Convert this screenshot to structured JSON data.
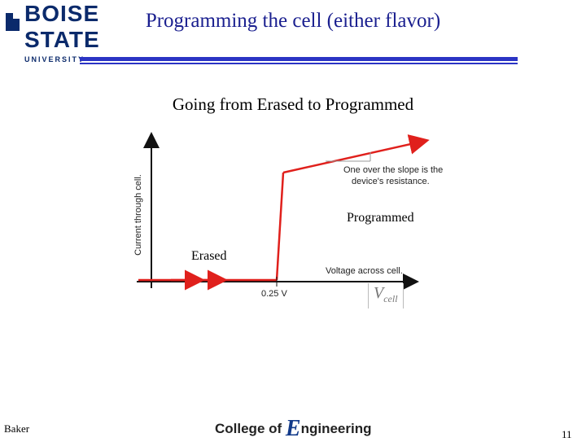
{
  "header": {
    "logo_line1": "BOISE",
    "logo_line2": "STATE",
    "logo_line3": "UNIVERSITY",
    "title": "Programming the cell (either flavor)",
    "bar_color": "#2b34c4"
  },
  "subtitle": "Going from Erased to Programmed",
  "diagram": {
    "y_axis_label": "Current through cell.",
    "x_axis_label": "Voltage across cell.",
    "threshold_label": "0.25 V",
    "annotation_line1": "One over the slope is the",
    "annotation_line2": "device's resistance.",
    "state_programmed": "Programmed",
    "state_erased": "Erased",
    "vcell_main": "V",
    "vcell_sub": "cell",
    "curve_color": "#e0201c"
  },
  "footer": {
    "author": "Baker",
    "college_prefix": "College of ",
    "college_e": "E",
    "college_suffix": "ngineering",
    "page_number": "11"
  }
}
